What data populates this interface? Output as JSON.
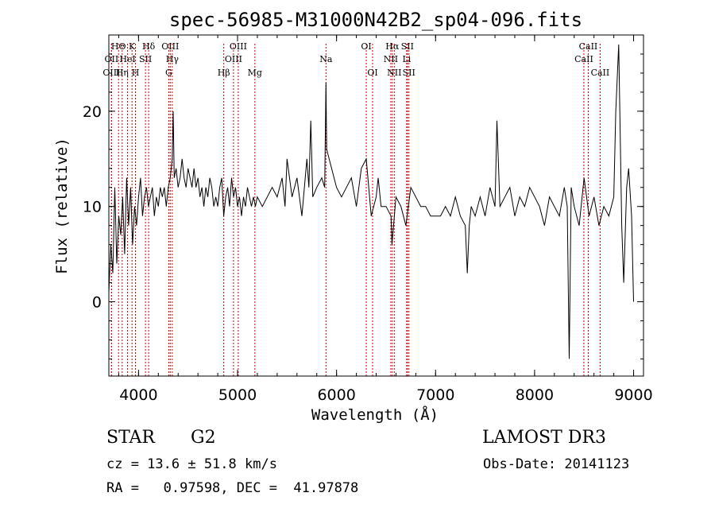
{
  "chart_data": {
    "type": "line",
    "title": "spec-56985-M31000N42B2_sp04-096.fits",
    "xlabel": "Wavelength (Å)",
    "ylabel": "Flux (relative)",
    "xlim": [
      3700,
      9100
    ],
    "ylim": [
      -7.8,
      28
    ],
    "xticks": [
      4000,
      5000,
      6000,
      7000,
      8000,
      9000
    ],
    "yticks": [
      0,
      10,
      20
    ],
    "grid": false,
    "line_color": "#000000",
    "marker_color": "#cc0000",
    "spectral_lines": [
      {
        "label": "HΘ",
        "x": 3798,
        "row": 0
      },
      {
        "label": "OII",
        "x": 3727,
        "row": 1
      },
      {
        "label": "OIII",
        "x": 3727,
        "row": 2
      },
      {
        "label": "Hη",
        "x": 3835,
        "row": 2
      },
      {
        "label": "K",
        "x": 3934,
        "row": 0
      },
      {
        "label": "HeI",
        "x": 3889,
        "row": 1
      },
      {
        "label": "H",
        "x": 3969,
        "row": 2
      },
      {
        "label": "SII",
        "x": 4070,
        "row": 1
      },
      {
        "label": "Hδ",
        "x": 4102,
        "row": 0
      },
      {
        "label": "OIII",
        "x": 4320,
        "row": 0
      },
      {
        "label": "Hγ",
        "x": 4341,
        "row": 1
      },
      {
        "label": "G",
        "x": 4305,
        "row": 2
      },
      {
        "label": "OIII",
        "x": 5007,
        "row": 0
      },
      {
        "label": "OIII",
        "x": 4959,
        "row": 1
      },
      {
        "label": "Hβ",
        "x": 4861,
        "row": 2
      },
      {
        "label": "Mg",
        "x": 5175,
        "row": 2
      },
      {
        "label": "Na",
        "x": 5893,
        "row": 1
      },
      {
        "label": "OI",
        "x": 6300,
        "row": 0
      },
      {
        "label": "OI",
        "x": 6364,
        "row": 2
      },
      {
        "label": "Hα",
        "x": 6563,
        "row": 0
      },
      {
        "label": "SII",
        "x": 6716,
        "row": 0
      },
      {
        "label": "NII",
        "x": 6548,
        "row": 1
      },
      {
        "label": "Li",
        "x": 6708,
        "row": 1
      },
      {
        "label": "NII",
        "x": 6583,
        "row": 2
      },
      {
        "label": "SII",
        "x": 6731,
        "row": 2
      },
      {
        "label": "CaII",
        "x": 8542,
        "row": 0
      },
      {
        "label": "CaII",
        "x": 8498,
        "row": 1
      },
      {
        "label": "CaII",
        "x": 8662,
        "row": 2
      }
    ],
    "series": [
      {
        "x": [
          3700,
          3720,
          3740,
          3760,
          3780,
          3800,
          3820,
          3840,
          3860,
          3880,
          3900,
          3920,
          3940,
          3960,
          3980,
          4000,
          4020,
          4040,
          4060,
          4080,
          4100,
          4120,
          4140,
          4160,
          4180,
          4200,
          4220,
          4240,
          4260,
          4280,
          4300,
          4320,
          4340,
          4350,
          4360,
          4380,
          4400,
          4420,
          4440,
          4460,
          4480,
          4500,
          4520,
          4540,
          4560,
          4580,
          4600,
          4620,
          4640,
          4660,
          4680,
          4700,
          4720,
          4740,
          4760,
          4780,
          4800,
          4820,
          4840,
          4860,
          4880,
          4900,
          4920,
          4940,
          4960,
          4980,
          5000,
          5020,
          5040,
          5060,
          5080,
          5100,
          5120,
          5140,
          5160,
          5180,
          5200,
          5250,
          5300,
          5350,
          5400,
          5450,
          5480,
          5500,
          5550,
          5600,
          5650,
          5700,
          5720,
          5740,
          5760,
          5800,
          5850,
          5880,
          5893,
          5900,
          5950,
          6000,
          6050,
          6100,
          6150,
          6200,
          6250,
          6300,
          6350,
          6400,
          6420,
          6450,
          6500,
          6550,
          6560,
          6600,
          6650,
          6700,
          6750,
          6800,
          6850,
          6900,
          6950,
          7000,
          7050,
          7100,
          7150,
          7200,
          7250,
          7300,
          7320,
          7340,
          7360,
          7400,
          7450,
          7500,
          7550,
          7600,
          7620,
          7650,
          7700,
          7750,
          7800,
          7850,
          7900,
          7950,
          8000,
          8050,
          8100,
          8150,
          8200,
          8250,
          8300,
          8330,
          8350,
          8370,
          8400,
          8450,
          8500,
          8550,
          8600,
          8650,
          8700,
          8750,
          8800,
          8820,
          8850,
          8880,
          8900,
          8930,
          8950,
          8980,
          9000
        ],
        "y": [
          1,
          6,
          3,
          12,
          4,
          9,
          7,
          11,
          5,
          13,
          8,
          12,
          6,
          10,
          8,
          11,
          13,
          9,
          11,
          12,
          10,
          11,
          12,
          9,
          11,
          10,
          12,
          11,
          12,
          10,
          12,
          13,
          15,
          20,
          13,
          14,
          12,
          13,
          15,
          13,
          12,
          14,
          13,
          12,
          14,
          12,
          13,
          11,
          12,
          10,
          12,
          11,
          13,
          12,
          10,
          11,
          10,
          12,
          13,
          9,
          11,
          12,
          10,
          13,
          11,
          12,
          10,
          11,
          9,
          11,
          10,
          12,
          11,
          10,
          11,
          10,
          11,
          10,
          11,
          12,
          11,
          13,
          10,
          15,
          11,
          13,
          9,
          15,
          12,
          19,
          11,
          12,
          13,
          12,
          23,
          16,
          14,
          12,
          11,
          12,
          13,
          10,
          14,
          15,
          9,
          11,
          13,
          10,
          10,
          9,
          6,
          11,
          10,
          8,
          12,
          11,
          10,
          10,
          9,
          9,
          9,
          10,
          9,
          11,
          9,
          8,
          3,
          8,
          10,
          9,
          11,
          9,
          12,
          10,
          19,
          10,
          11,
          12,
          9,
          11,
          10,
          12,
          11,
          10,
          8,
          11,
          10,
          9,
          12,
          10,
          -6,
          12,
          10,
          8,
          13,
          9,
          11,
          8,
          10,
          9,
          11,
          20,
          27,
          8,
          2,
          12,
          14,
          9,
          0
        ]
      }
    ]
  },
  "info": {
    "object_type": "STAR",
    "object_class": "G2",
    "survey": "LAMOST DR3",
    "cz": "cz = 13.6 ± 51.8 km/s",
    "obs_date": "Obs-Date: 20141123",
    "radec": "RA =   0.97598, DEC =  41.97878"
  }
}
